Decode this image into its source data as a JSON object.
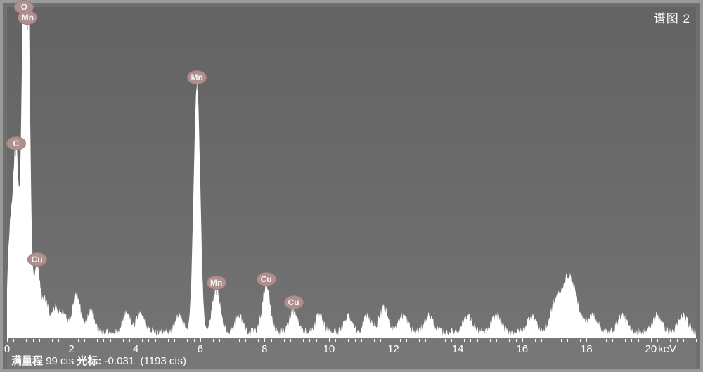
{
  "title": "谱图 2",
  "status": {
    "label1": "满量程",
    "value1": "99 cts",
    "label2": "光标:",
    "value2": "-0.031",
    "value3": "(1193 cts)"
  },
  "x_unit": "keV",
  "colors": {
    "frame_border": "#9a9a9a",
    "plot_bg_top": "#636363",
    "plot_bg_bottom": "#737373",
    "spectrum_fill": "#ffffff",
    "text": "#ffffff",
    "badge_bg": "#b08f8f",
    "badge_border": "#9e7c7c",
    "badge_text": "#f5f5f5",
    "tick": "#ffffff"
  },
  "chart": {
    "type": "line-spectrum",
    "xlim": [
      0,
      21.4
    ],
    "ylim": [
      0,
      100
    ],
    "x_major_ticks": [
      0,
      2,
      4,
      6,
      8,
      10,
      12,
      14,
      16,
      18,
      20
    ],
    "x_minor_step": 0.2,
    "title_fontsize": 17,
    "axis_fontsize": 15,
    "status_fontsize": 15,
    "badge_fontsize": 12,
    "line_width": 1,
    "noise_baseline": 1.5,
    "noise_amplitude": 2.5,
    "peaks": [
      {
        "x": 0.1,
        "h": 30,
        "w": 0.08
      },
      {
        "x": 0.28,
        "h": 55,
        "w": 0.08,
        "label": "C"
      },
      {
        "x": 0.53,
        "h": 100,
        "w": 0.08,
        "label": "O"
      },
      {
        "x": 0.64,
        "h": 93,
        "w": 0.08,
        "label": "Mn"
      },
      {
        "x": 0.93,
        "h": 20,
        "w": 0.1,
        "label": "Cu"
      },
      {
        "x": 1.2,
        "h": 9,
        "w": 0.1
      },
      {
        "x": 1.5,
        "h": 7,
        "w": 0.1
      },
      {
        "x": 1.75,
        "h": 6,
        "w": 0.1
      },
      {
        "x": 2.15,
        "h": 12,
        "w": 0.12
      },
      {
        "x": 2.6,
        "h": 6,
        "w": 0.12
      },
      {
        "x": 3.7,
        "h": 6,
        "w": 0.12
      },
      {
        "x": 4.15,
        "h": 6,
        "w": 0.12
      },
      {
        "x": 5.35,
        "h": 5,
        "w": 0.12
      },
      {
        "x": 5.9,
        "h": 75,
        "w": 0.1,
        "label": "Mn"
      },
      {
        "x": 6.5,
        "h": 13,
        "w": 0.12,
        "label": "Mn"
      },
      {
        "x": 7.2,
        "h": 5,
        "w": 0.12
      },
      {
        "x": 8.05,
        "h": 14,
        "w": 0.12,
        "label": "Cu"
      },
      {
        "x": 8.9,
        "h": 7,
        "w": 0.12,
        "label": "Cu"
      },
      {
        "x": 9.7,
        "h": 5,
        "w": 0.12
      },
      {
        "x": 10.6,
        "h": 5,
        "w": 0.12
      },
      {
        "x": 11.2,
        "h": 5,
        "w": 0.12
      },
      {
        "x": 11.7,
        "h": 7,
        "w": 0.14
      },
      {
        "x": 12.3,
        "h": 5,
        "w": 0.14
      },
      {
        "x": 13.1,
        "h": 5,
        "w": 0.14
      },
      {
        "x": 14.3,
        "h": 5,
        "w": 0.14
      },
      {
        "x": 15.2,
        "h": 5,
        "w": 0.14
      },
      {
        "x": 16.3,
        "h": 5,
        "w": 0.14
      },
      {
        "x": 17.0,
        "h": 6,
        "w": 0.14
      },
      {
        "x": 17.45,
        "h": 17,
        "w": 0.25
      },
      {
        "x": 18.2,
        "h": 5,
        "w": 0.14
      },
      {
        "x": 19.1,
        "h": 5,
        "w": 0.14
      },
      {
        "x": 20.2,
        "h": 5,
        "w": 0.14
      },
      {
        "x": 21.0,
        "h": 5,
        "w": 0.14
      }
    ]
  }
}
